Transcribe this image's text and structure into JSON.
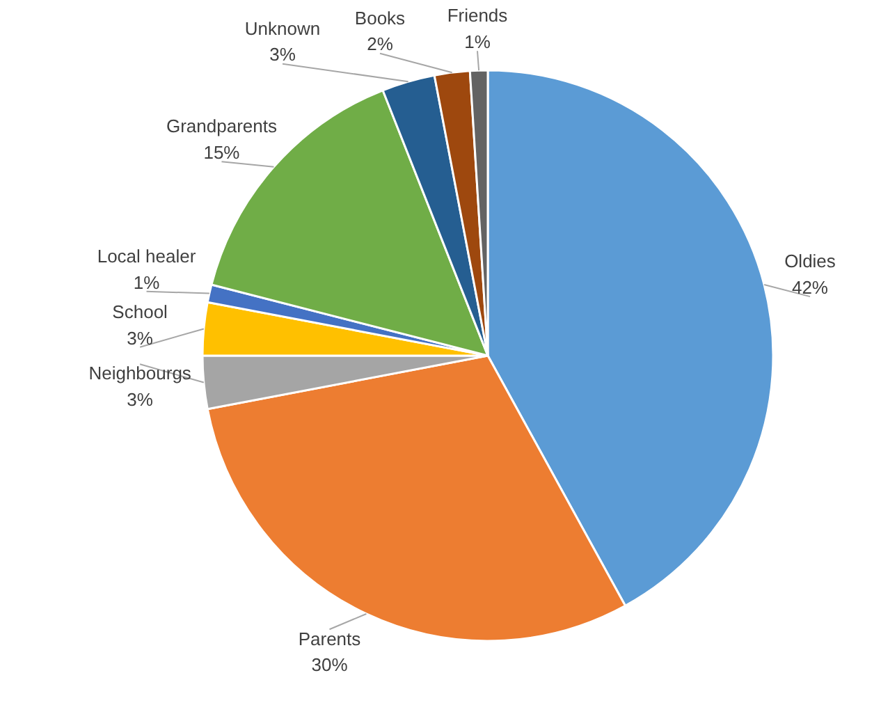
{
  "chart_data": {
    "type": "pie",
    "categories": [
      "Oldies",
      "Parents",
      "Neighbourgs",
      "School",
      "Local healer",
      "Grandparents",
      "Unknown",
      "Books",
      "Friends"
    ],
    "values": [
      42,
      30,
      3,
      3,
      1,
      15,
      3,
      2,
      1
    ],
    "value_labels": [
      "42%",
      "30%",
      "3%",
      "3%",
      "1%",
      "15%",
      "3%",
      "2%",
      "1%"
    ],
    "colors": [
      "#5b9bd5",
      "#ed7d31",
      "#a5a5a5",
      "#ffc000",
      "#4472c4",
      "#70ad47",
      "#255e91",
      "#9e480e",
      "#636363"
    ]
  }
}
